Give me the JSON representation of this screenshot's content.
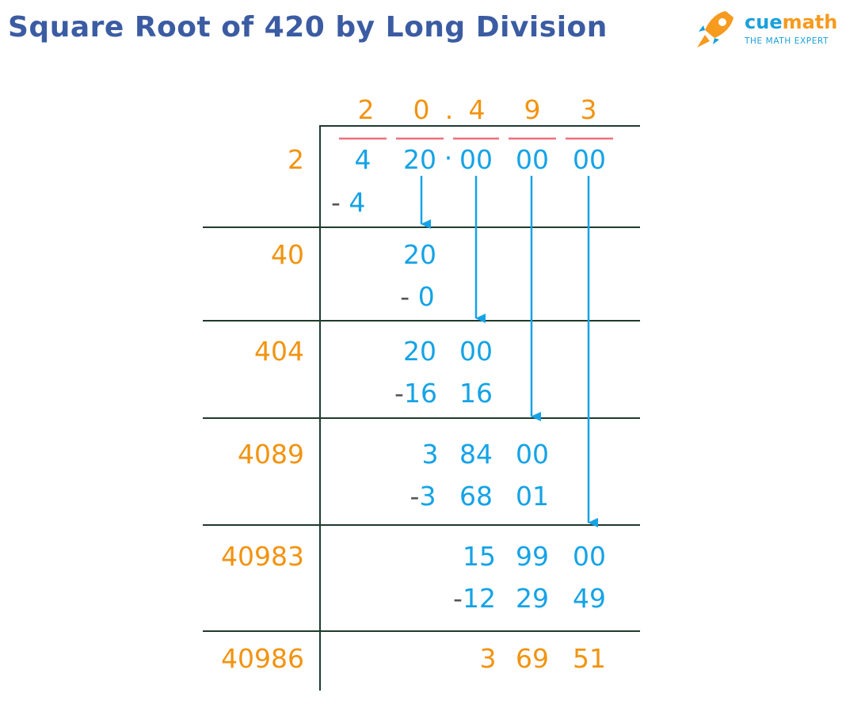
{
  "title": "Square Root of 420 by Long Division",
  "logo": {
    "brand_cue": "cue",
    "brand_math": "math",
    "tagline": "THE MATH EXPERT"
  },
  "colors": {
    "title": "#3b5ca3",
    "orange": "#f2930f",
    "blue": "#15a3e6",
    "line": "#1f3a2e",
    "bar": "#ef6f7e",
    "minus": "#555555"
  },
  "quotient": {
    "d1": "2",
    "d2": "0",
    "point": ".",
    "d3": "4",
    "d4": "9",
    "d5": "3"
  },
  "dividend": {
    "p1": "4",
    "p2": "20",
    "dot": "·",
    "p3": "00",
    "p4": "00",
    "p5": "00"
  },
  "divisors": [
    "2",
    "40",
    "404",
    "4089",
    "40983",
    "40986"
  ],
  "steps": {
    "s1_sub": "- 4",
    "s2_val": "20",
    "s2_sub": "- 0",
    "s3_val_a": "20",
    "s3_val_b": "00",
    "s3_sub_a": "-16",
    "s3_sub_b": "16",
    "s4_val_a": "3",
    "s4_val_b": "84",
    "s4_val_c": "00",
    "s4_sub_a": "-3",
    "s4_sub_b": "68",
    "s4_sub_c": "01",
    "s5_val_a": "15",
    "s5_val_b": "99",
    "s5_val_c": "00",
    "s5_sub_a": "-12",
    "s5_sub_b": "29",
    "s5_sub_c": "49"
  },
  "remainder": {
    "a": "3",
    "b": "69",
    "c": "51"
  },
  "icons": {
    "logo": "rocket-icon",
    "arrow": "down-arrow-icon"
  }
}
